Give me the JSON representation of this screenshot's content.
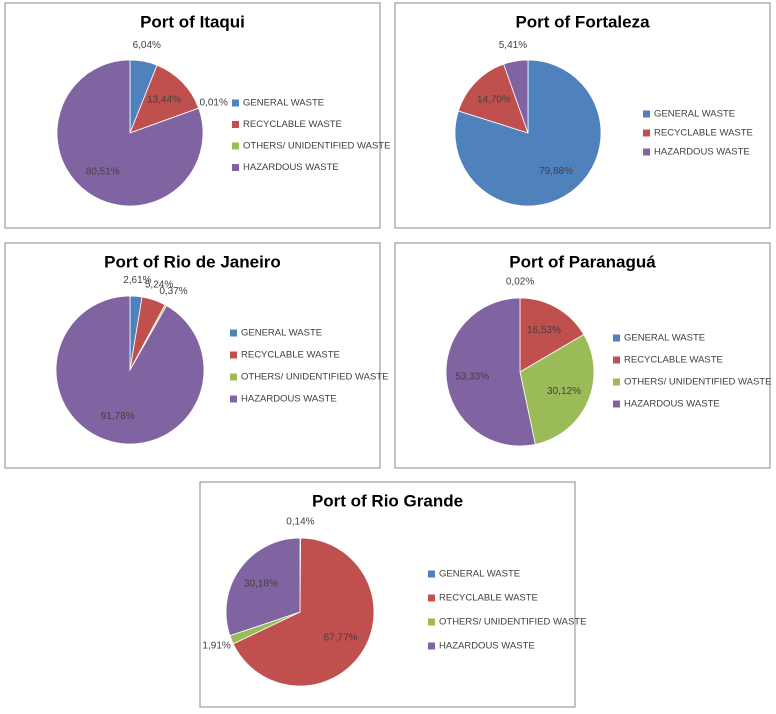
{
  "chart_data": [
    {
      "type": "pie",
      "title": "Port of Itaqui",
      "categories": [
        "GENERAL WASTE",
        "RECYCLABLE WASTE",
        "OTHERS/ UNIDENTIFIED WASTE",
        "HAZARDOUS WASTE"
      ],
      "values": [
        6.04,
        13.44,
        0.01,
        80.51
      ],
      "value_labels": [
        "6,04%",
        "13,44%",
        "0,01%",
        "80,51%"
      ],
      "colors": [
        "#4f81bd",
        "#c0504d",
        "#9bbb59",
        "#8064a2"
      ]
    },
    {
      "type": "pie",
      "title": "Port of Fortaleza",
      "categories": [
        "GENERAL WASTE",
        "RECYCLABLE WASTE",
        "HAZARDOUS WASTE"
      ],
      "values": [
        79.88,
        14.7,
        5.41
      ],
      "value_labels": [
        "79,88%",
        "14,70%",
        "5,41%"
      ],
      "colors": [
        "#4f81bd",
        "#c0504d",
        "#8064a2"
      ]
    },
    {
      "type": "pie",
      "title": "Port of Rio de Janeiro",
      "categories": [
        "GENERAL WASTE",
        "RECYCLABLE WASTE",
        "OTHERS/ UNIDENTIFIED WASTE",
        "HAZARDOUS WASTE"
      ],
      "values": [
        2.61,
        5.24,
        0.37,
        91.78
      ],
      "value_labels": [
        "2,61%",
        "5,24%",
        "0,37%",
        "91,78%"
      ],
      "colors": [
        "#4f81bd",
        "#c0504d",
        "#9bbb59",
        "#8064a2"
      ]
    },
    {
      "type": "pie",
      "title": "Port of Paranaguá",
      "categories": [
        "GENERAL WASTE",
        "RECYCLABLE WASTE",
        "OTHERS/ UNIDENTIFIED WASTE",
        "HAZARDOUS WASTE"
      ],
      "values": [
        0.02,
        16.53,
        30.12,
        53.33
      ],
      "value_labels": [
        "0,02%",
        "16,53%",
        "30,12%",
        "53,33%"
      ],
      "colors": [
        "#4f81bd",
        "#c0504d",
        "#9bbb59",
        "#8064a2"
      ]
    },
    {
      "type": "pie",
      "title": "Port of Rio Grande",
      "categories": [
        "GENERAL WASTE",
        "RECYCLABLE WASTE",
        "OTHERS/ UNIDENTIFIED WASTE",
        "HAZARDOUS WASTE"
      ],
      "values": [
        0.14,
        67.77,
        1.91,
        30.18
      ],
      "value_labels": [
        "0,14%",
        "67,77%",
        "1,91%",
        "30,18%"
      ],
      "colors": [
        "#4f81bd",
        "#c0504d",
        "#9bbb59",
        "#8064a2"
      ]
    }
  ]
}
